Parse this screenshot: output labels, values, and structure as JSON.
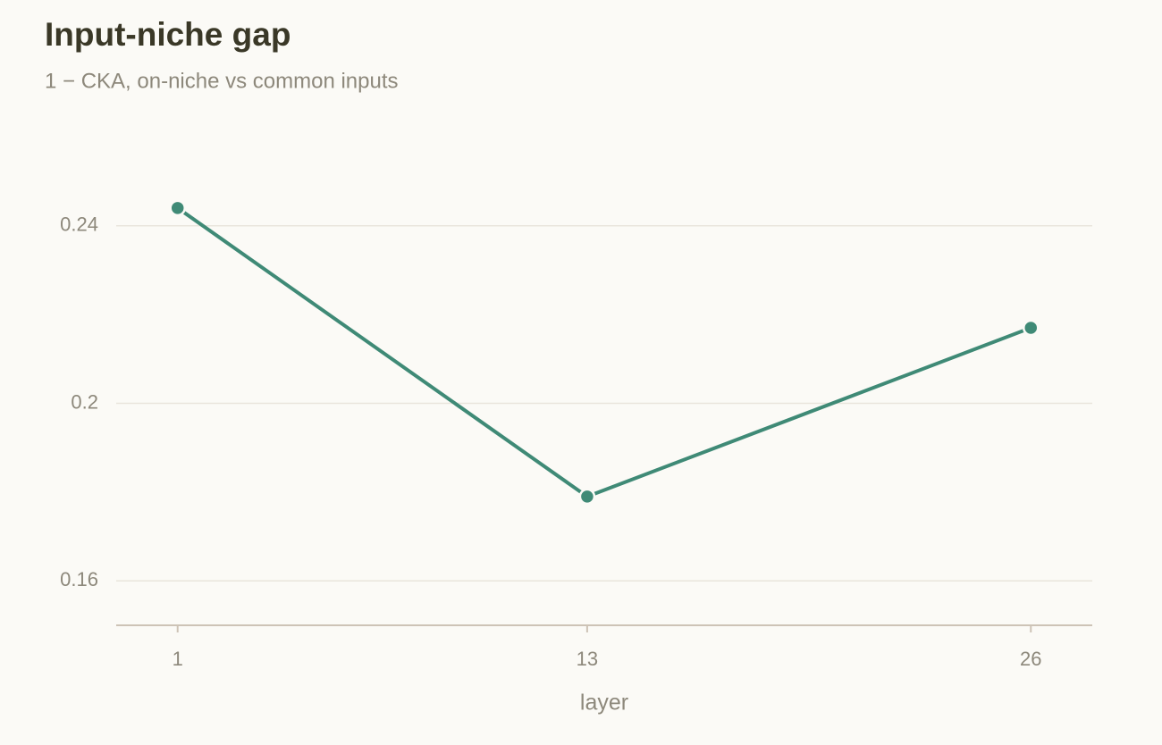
{
  "chart_data": {
    "type": "line",
    "title": "Input-niche gap",
    "subtitle": "1 − CKA, on-niche vs common inputs",
    "x_label": "layer",
    "x": [
      1,
      13,
      26
    ],
    "values": [
      0.244,
      0.179,
      0.217
    ],
    "color": "#3f8a76",
    "xlim": [
      -0.8,
      27.8
    ],
    "xticks": [
      1,
      13,
      26
    ],
    "ylim": [
      0.15,
      0.25
    ],
    "yticks": [
      0.16,
      0.2,
      {
        "value": 0.24,
        "label": "0.24"
      }
    ],
    "grid": true
  }
}
